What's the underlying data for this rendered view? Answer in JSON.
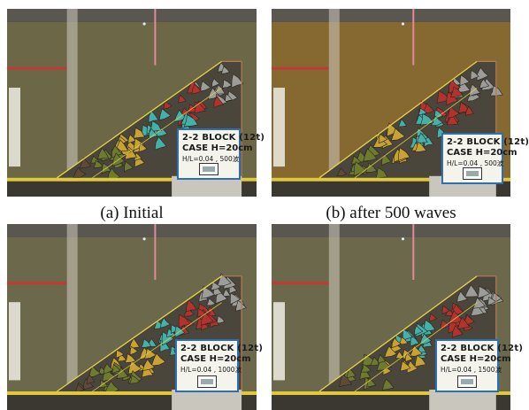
{
  "figure": {
    "panels": [
      {
        "id": "a",
        "caption": "(a) Initial",
        "water": "#6f6a49",
        "sign": {
          "line1": "2-2 BLOCK (12t)",
          "line2": "CASE H=20cm",
          "line3": "H/L=0.04 , 500波"
        }
      },
      {
        "id": "b",
        "caption": "(b) after 500 waves",
        "water": "#8a6a32",
        "sign": {
          "line1": "2-2 BLOCK (12t)",
          "line2": "CASE H=20cm",
          "line3": "H/L=0.04 , 500波"
        }
      },
      {
        "id": "c",
        "caption": "",
        "water": "#6e6a4d",
        "sign": {
          "line1": "2-2 BLOCK (12t)",
          "line2": "CASE H=20cm",
          "line3": "H/L=0.04 , 1000波"
        }
      },
      {
        "id": "d",
        "caption": "",
        "water": "#6e6a4d",
        "sign": {
          "line1": "2-2 BLOCK (12t)",
          "line2": "CASE H=20cm",
          "line3": "H/L=0.04 , 1500波"
        }
      }
    ],
    "colors": {
      "block_gray": "#9c9c98",
      "block_red": "#b2332e",
      "block_teal": "#45b0a8",
      "block_yellow": "#c8a232",
      "block_green": "#6d7a2f",
      "block_brown": "#5e4a38",
      "frame_yellow": "#e7d34a",
      "rail_red": "#c23a35",
      "sign_border": "#2c6fb5"
    }
  }
}
